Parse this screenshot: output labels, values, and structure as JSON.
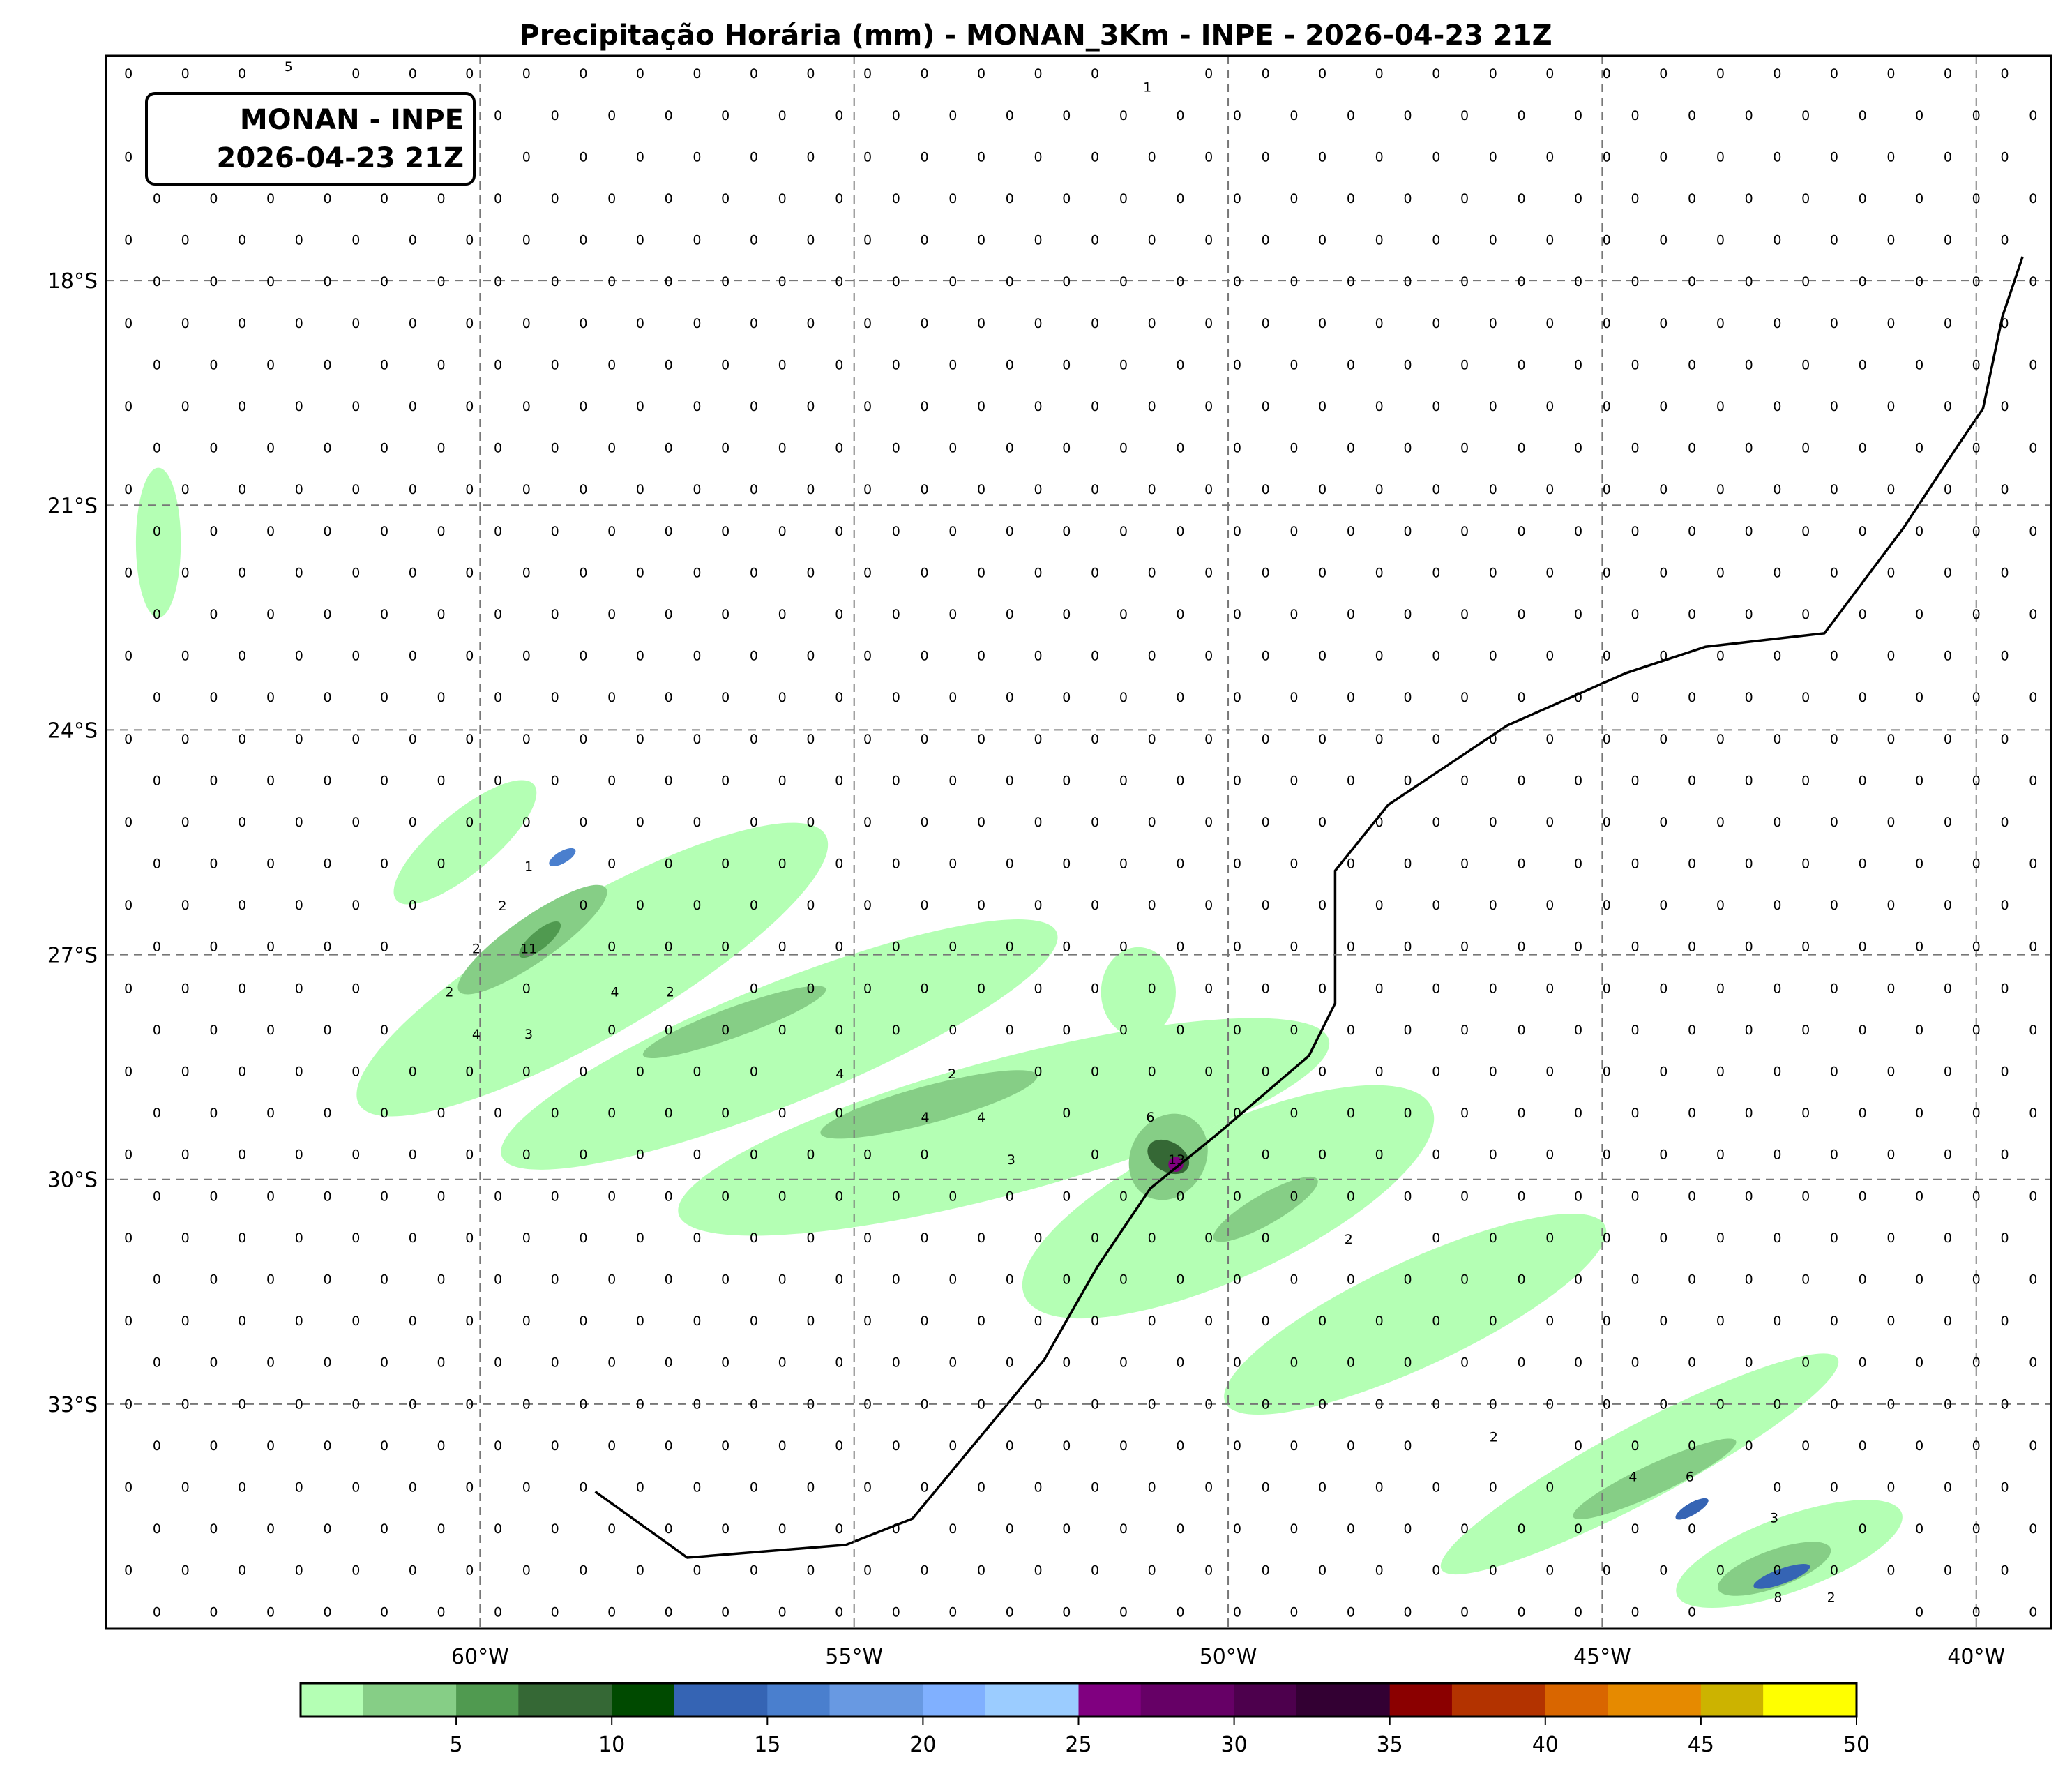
{
  "title": "Precipitação Horária (mm) - MONAN_3Km - INPE - 2026-04-23 21Z",
  "label_box": {
    "line1": "MONAN - INPE",
    "line2": "2026-04-23 21Z"
  },
  "map": {
    "lon_range": [
      -65,
      -39
    ],
    "lat_range": [
      -36,
      -15
    ],
    "gridlines": "dashed",
    "lon_ticks": [
      {
        "lon": -60,
        "label": "60°W"
      },
      {
        "lon": -55,
        "label": "55°W"
      },
      {
        "lon": -50,
        "label": "50°W"
      },
      {
        "lon": -45,
        "label": "45°W"
      },
      {
        "lon": -40,
        "label": "40°W"
      }
    ],
    "lat_ticks": [
      {
        "lat": -18,
        "label": "18°S"
      },
      {
        "lat": -21,
        "label": "21°S"
      },
      {
        "lat": -24,
        "label": "24°S"
      },
      {
        "lat": -27,
        "label": "27°S"
      },
      {
        "lat": -30,
        "label": "30°S"
      },
      {
        "lat": -33,
        "label": "33°S"
      }
    ],
    "default_point_value": "0",
    "point_values": [
      {
        "lon": -62.56,
        "lat": -15.1,
        "v": "5"
      },
      {
        "lon": -51.08,
        "lat": -15.48,
        "v": "1"
      },
      {
        "lon": -59.35,
        "lat": -25.88,
        "v": "1"
      },
      {
        "lon": -59.7,
        "lat": -26.41,
        "v": "2"
      },
      {
        "lon": -59.35,
        "lat": -26.98,
        "v": "11"
      },
      {
        "lon": -60.05,
        "lat": -26.98,
        "v": "2"
      },
      {
        "lon": -60.41,
        "lat": -27.56,
        "v": "2"
      },
      {
        "lon": -58.2,
        "lat": -27.56,
        "v": "4"
      },
      {
        "lon": -57.46,
        "lat": -27.56,
        "v": "2"
      },
      {
        "lon": -60.05,
        "lat": -28.12,
        "v": "4"
      },
      {
        "lon": -59.35,
        "lat": -28.12,
        "v": "3"
      },
      {
        "lon": -55.19,
        "lat": -28.65,
        "v": "4"
      },
      {
        "lon": -53.69,
        "lat": -28.65,
        "v": "2"
      },
      {
        "lon": -54.05,
        "lat": -29.23,
        "v": "4"
      },
      {
        "lon": -53.3,
        "lat": -29.23,
        "v": "4"
      },
      {
        "lon": -51.04,
        "lat": -29.23,
        "v": "6"
      },
      {
        "lon": -52.9,
        "lat": -29.8,
        "v": "3"
      },
      {
        "lon": -50.69,
        "lat": -29.8,
        "v": "13"
      },
      {
        "lon": -48.39,
        "lat": -30.86,
        "v": "2"
      },
      {
        "lon": -46.45,
        "lat": -33.5,
        "v": "2"
      },
      {
        "lon": -44.59,
        "lat": -34.03,
        "v": "4"
      },
      {
        "lon": -43.83,
        "lat": -34.03,
        "v": "6"
      },
      {
        "lon": -42.7,
        "lat": -34.58,
        "v": "3"
      },
      {
        "lon": -42.65,
        "lat": -35.64,
        "v": "8"
      },
      {
        "lon": -41.94,
        "lat": -35.64,
        "v": "2"
      }
    ],
    "coastline": [
      [
        -39.38,
        -17.68
      ],
      [
        -39.65,
        -18.48
      ],
      [
        -39.91,
        -19.71
      ],
      [
        -40.27,
        -20.24
      ],
      [
        -40.97,
        -21.3
      ],
      [
        -42.03,
        -22.71
      ],
      [
        -43.62,
        -22.89
      ],
      [
        -44.68,
        -23.24
      ],
      [
        -46.27,
        -23.94
      ],
      [
        -47.86,
        -25.0
      ],
      [
        -48.57,
        -25.88
      ],
      [
        -48.57,
        -27.65
      ],
      [
        -48.92,
        -28.35
      ],
      [
        -50.16,
        -29.41
      ],
      [
        -51.04,
        -30.12
      ],
      [
        -51.75,
        -31.17
      ],
      [
        -52.46,
        -32.41
      ],
      [
        -53.34,
        -33.47
      ],
      [
        -54.22,
        -34.53
      ],
      [
        -55.11,
        -34.88
      ],
      [
        -57.23,
        -35.05
      ],
      [
        -58.46,
        -34.17
      ]
    ]
  },
  "colorbar": {
    "levels": [
      0,
      2,
      5,
      7,
      10,
      12,
      15,
      17,
      20,
      22,
      25,
      27,
      30,
      32,
      35,
      37,
      40,
      42,
      45,
      47,
      50
    ],
    "colors": [
      "#b4ffb4",
      "#86ce86",
      "#509a50",
      "#356835",
      "#004a00",
      "#3564b4",
      "#4a7fce",
      "#6899e2",
      "#80b0ff",
      "#9bccff",
      "#800080",
      "#660066",
      "#4d004d",
      "#330033",
      "#8b0000",
      "#b33300",
      "#d96600",
      "#e68a00",
      "#ccb300",
      "#ffff00"
    ],
    "ticks": [
      "5",
      "10",
      "15",
      "20",
      "25",
      "30",
      "35",
      "40",
      "45",
      "50"
    ]
  }
}
